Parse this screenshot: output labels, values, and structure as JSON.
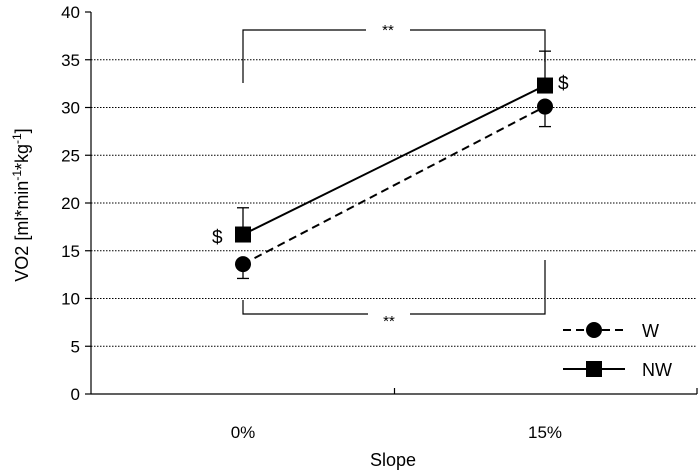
{
  "chart_data": {
    "type": "line",
    "title": "",
    "xlabel": "Slope",
    "ylabel": "VO2 [ml*min-1*kg-1]",
    "ylabel_parts": [
      "VO2 [ml*min",
      "-1",
      "*kg",
      "-1",
      "]"
    ],
    "categories": [
      "0%",
      "15%"
    ],
    "ylim": [
      0,
      40
    ],
    "yticks": [
      "0",
      "5",
      "10",
      "15",
      "20",
      "25",
      "30",
      "35",
      "40"
    ],
    "grid": true,
    "legend_position": "bottom-right",
    "series": [
      {
        "name": "W",
        "values": [
          13.6,
          30.1
        ],
        "errors": [
          1.5,
          2.1
        ],
        "marker": "circle",
        "line_style": "dashed"
      },
      {
        "name": "NW",
        "values": [
          16.7,
          32.3
        ],
        "errors": [
          2.8,
          3.6
        ],
        "marker": "square",
        "line_style": "solid"
      }
    ],
    "annotations": [
      {
        "text": "**",
        "kind": "bracket",
        "position": "top"
      },
      {
        "text": "**",
        "kind": "bracket",
        "position": "bottom"
      },
      {
        "text": "$",
        "kind": "label",
        "near": "NW 0%"
      },
      {
        "text": "$",
        "kind": "label",
        "near": "NW 15%"
      }
    ]
  }
}
